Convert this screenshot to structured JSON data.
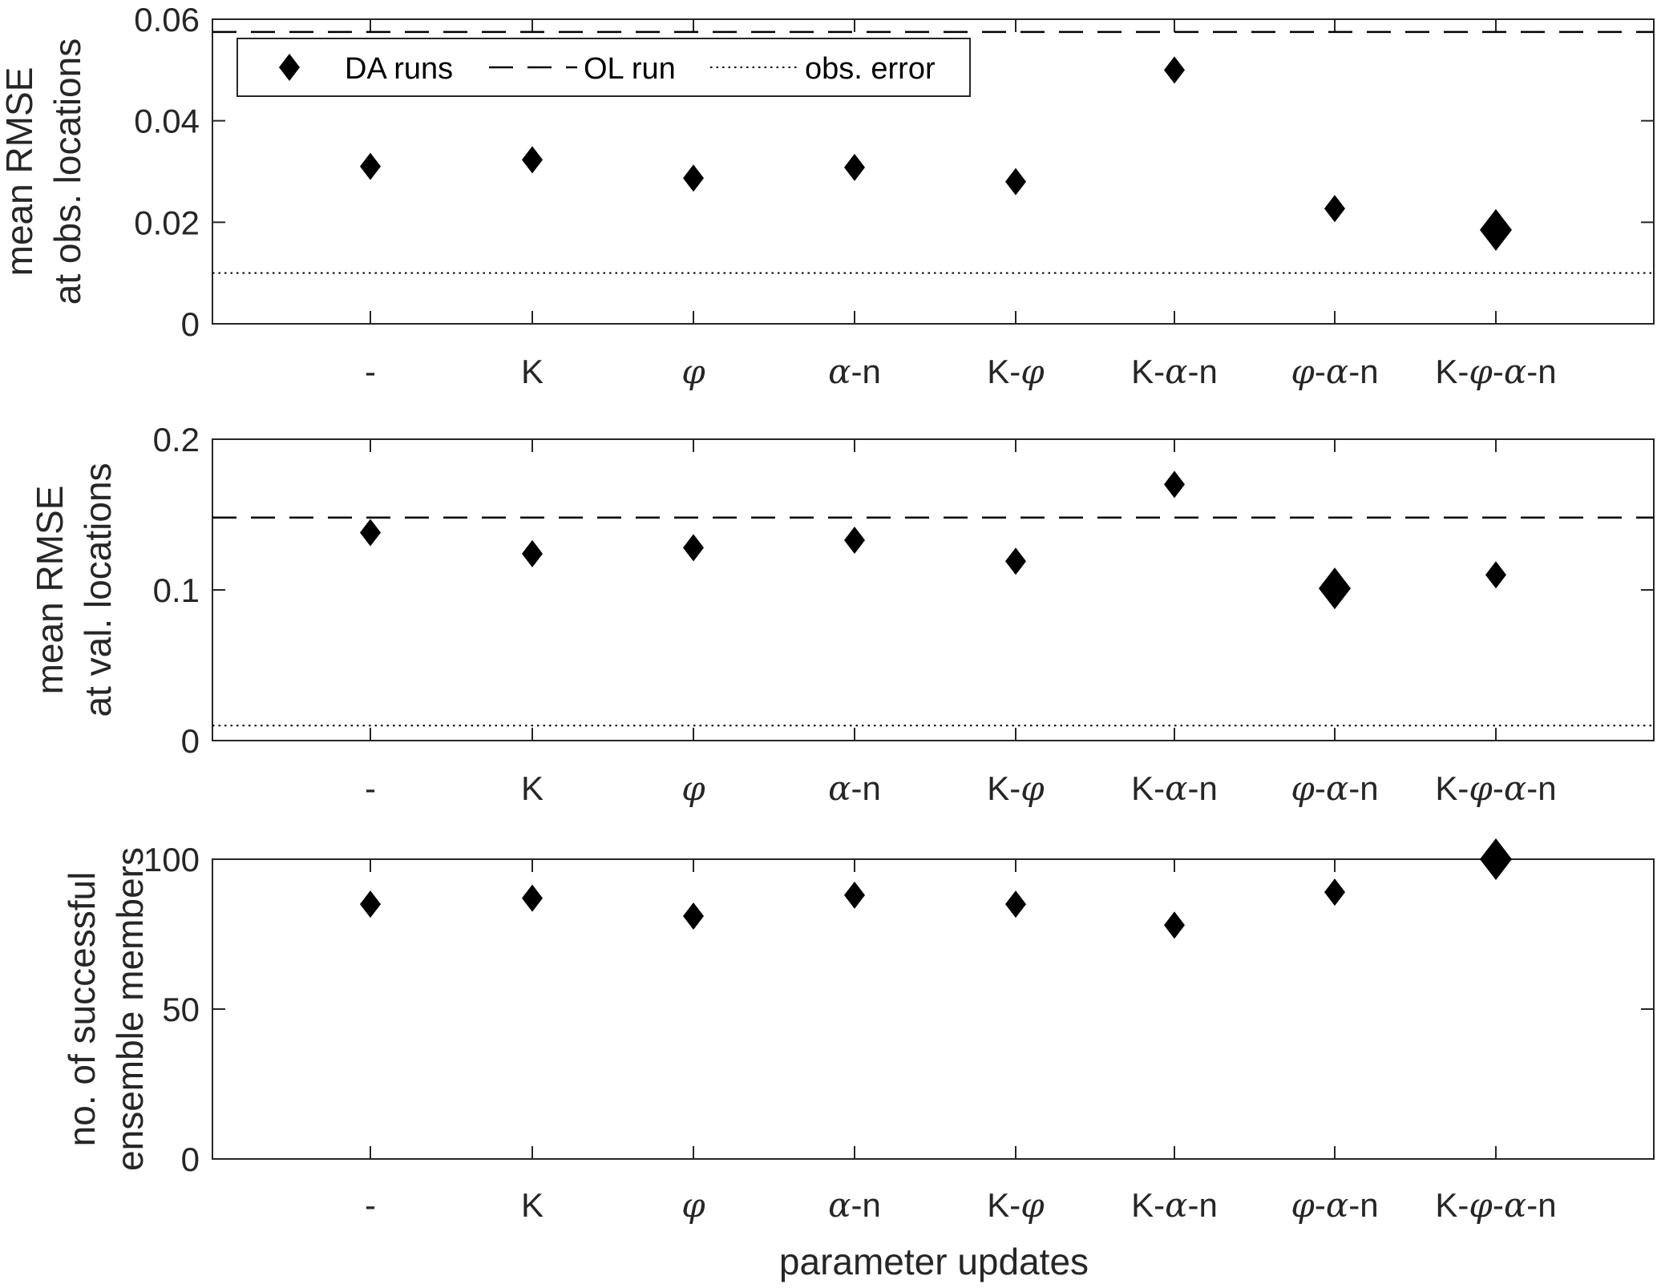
{
  "chart_data": [
    {
      "type": "scatter",
      "categories": [
        "-",
        "K",
        "φ",
        "α-n",
        "K-φ",
        "K-α-n",
        "φ-α-n",
        "K-φ-α-n"
      ],
      "ylabel": [
        "mean RMSE",
        "at obs. locations"
      ],
      "xlabel": "",
      "ylim": [
        0,
        0.06
      ],
      "yticks": [
        "0",
        "0.02",
        "0.04",
        "0.06"
      ],
      "series": [
        {
          "name": "DA runs",
          "values": [
            0.031,
            0.0323,
            0.0287,
            0.0308,
            0.028,
            0.05,
            0.0227,
            0.0185
          ],
          "highlight_index": 7
        }
      ],
      "reference_lines": [
        {
          "name": "OL run",
          "value": 0.0575,
          "style": "dashed"
        },
        {
          "name": "obs. error",
          "value": 0.01,
          "style": "dotted"
        }
      ],
      "legend": {
        "placement": "top-left",
        "entries": [
          "DA runs",
          "OL run",
          "obs. error"
        ]
      }
    },
    {
      "type": "scatter",
      "categories": [
        "-",
        "K",
        "φ",
        "α-n",
        "K-φ",
        "K-α-n",
        "φ-α-n",
        "K-φ-α-n"
      ],
      "ylabel": [
        "mean RMSE",
        "at val. locations"
      ],
      "xlabel": "",
      "ylim": [
        0,
        0.2
      ],
      "yticks": [
        "0",
        "0.1",
        "0.2"
      ],
      "series": [
        {
          "name": "DA runs",
          "values": [
            0.138,
            0.124,
            0.128,
            0.133,
            0.119,
            0.17,
            0.101,
            0.11
          ],
          "highlight_index": 6
        }
      ],
      "reference_lines": [
        {
          "name": "OL run",
          "value": 0.148,
          "style": "dashed"
        },
        {
          "name": "obs. error",
          "value": 0.01,
          "style": "dotted"
        }
      ]
    },
    {
      "type": "scatter",
      "categories": [
        "-",
        "K",
        "φ",
        "α-n",
        "K-φ",
        "K-α-n",
        "φ-α-n",
        "K-φ-α-n"
      ],
      "ylabel": [
        "no. of successful",
        "ensemble members"
      ],
      "xlabel": "parameter updates",
      "ylim": [
        0,
        100
      ],
      "yticks": [
        "0",
        "50",
        "100"
      ],
      "series": [
        {
          "name": "DA runs",
          "values": [
            85,
            87,
            81,
            88,
            85,
            78,
            89,
            100
          ],
          "highlight_index": 7
        }
      ]
    }
  ]
}
